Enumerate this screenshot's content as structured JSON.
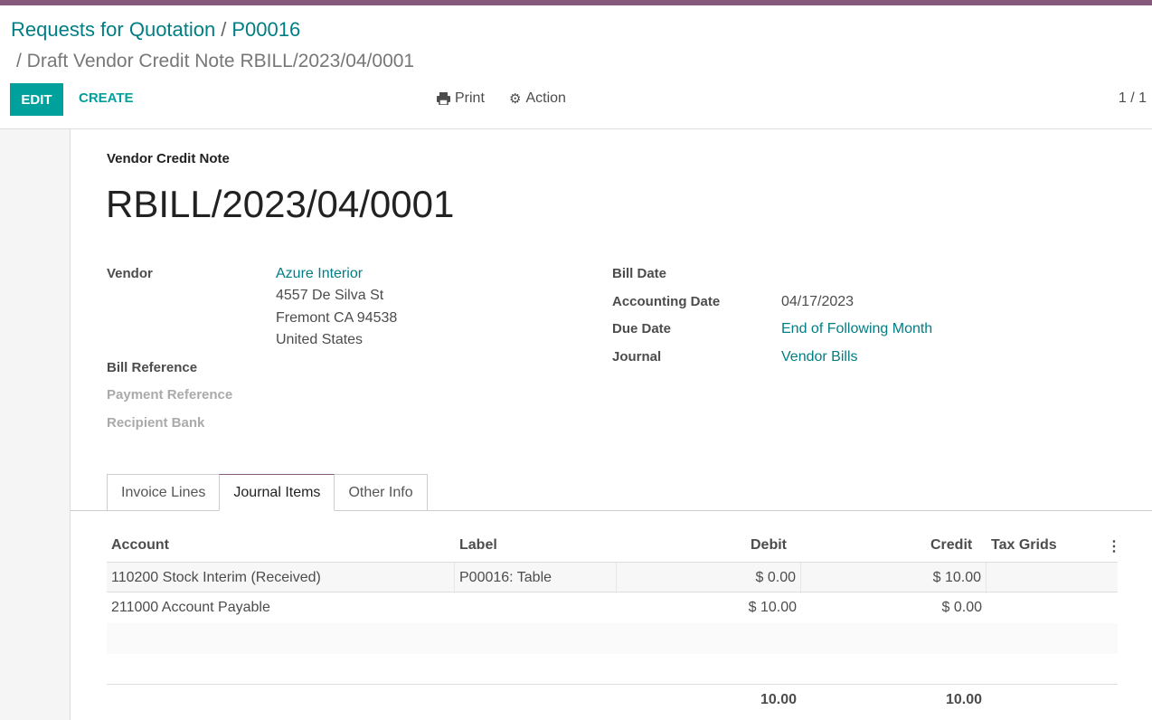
{
  "breadcrumb": {
    "items": [
      "Requests for Quotation",
      "P00016"
    ],
    "current": "/ Draft Vendor Credit Note RBILL/2023/04/0001"
  },
  "toolbar": {
    "edit": "EDIT",
    "create": "CREATE",
    "print": "Print",
    "action": "Action",
    "pager": "1 / 1"
  },
  "form": {
    "type_label": "Vendor Credit Note",
    "name": "RBILL/2023/04/0001",
    "vendor_label": "Vendor",
    "vendor": "Azure Interior",
    "address": [
      "4557 De Silva St",
      "Fremont CA 94538",
      "United States"
    ],
    "bill_reference_label": "Bill Reference",
    "payment_reference_label": "Payment Reference",
    "recipient_bank_label": "Recipient Bank",
    "bill_date_label": "Bill Date",
    "accounting_date_label": "Accounting Date",
    "accounting_date": "04/17/2023",
    "due_date_label": "Due Date",
    "due_date": "End of Following Month",
    "journal_label": "Journal",
    "journal": "Vendor Bills"
  },
  "tabs": [
    {
      "label": "Invoice Lines"
    },
    {
      "label": "Journal Items",
      "active": true
    },
    {
      "label": "Other Info"
    }
  ],
  "table": {
    "headers": [
      "Account",
      "Label",
      "Debit",
      "Credit",
      "Tax Grids"
    ],
    "rows": [
      {
        "account": "110200 Stock Interim (Received)",
        "label": "P00016: Table",
        "debit": "$ 0.00",
        "credit": "$ 10.00",
        "tax_grids": ""
      },
      {
        "account": "211000 Account Payable",
        "label": "",
        "debit": "$ 10.00",
        "credit": "$ 0.00",
        "tax_grids": ""
      }
    ],
    "totals": {
      "debit": "10.00",
      "credit": "10.00"
    }
  },
  "colors": {
    "brand": "#875a7b",
    "accent": "#00a09d",
    "link": "#017e84"
  }
}
